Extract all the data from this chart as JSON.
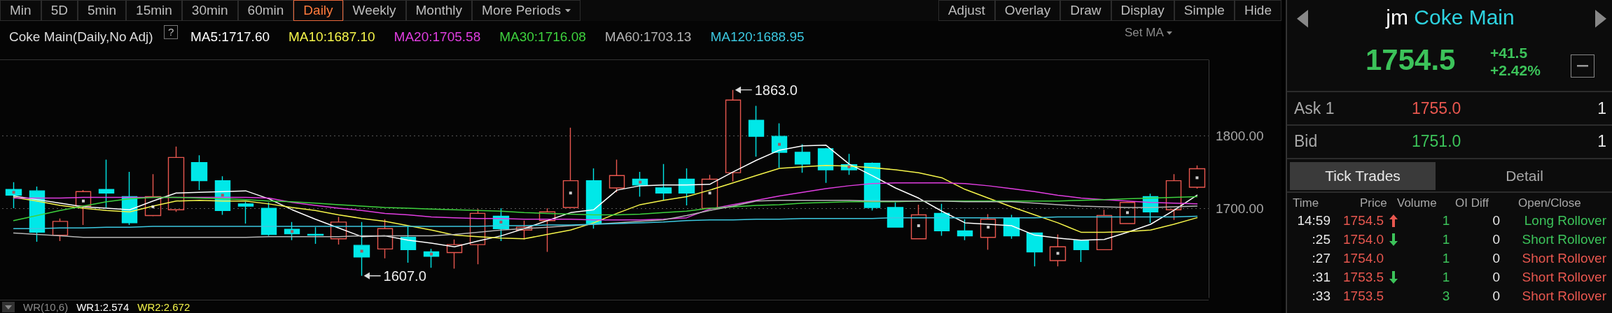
{
  "chart_data": [
    {
      "type": "candlestick",
      "title": "Coke Main(Daily,No Adj)",
      "categories": [
        null,
        null,
        null,
        null,
        null,
        null,
        null,
        null,
        null,
        null,
        null,
        null,
        null,
        null,
        null,
        null,
        null,
        null,
        null,
        null,
        null,
        null,
        null,
        null,
        null,
        null,
        null,
        null,
        null,
        null,
        null,
        null,
        null,
        null,
        null,
        null,
        null,
        null,
        null,
        null,
        null,
        null,
        null,
        null,
        null,
        null,
        null,
        null,
        null,
        null,
        null,
        null
      ],
      "ohlc": [
        [
          1726,
          1736,
          1700,
          1718
        ],
        [
          1724,
          1730,
          1654,
          1667
        ],
        [
          1663,
          1686,
          1655,
          1682
        ],
        [
          1703,
          1725,
          1677,
          1723
        ],
        [
          1726,
          1767,
          1701,
          1721
        ],
        [
          1716,
          1750,
          1677,
          1680
        ],
        [
          1690,
          1747,
          1689,
          1716
        ],
        [
          1698,
          1785,
          1695,
          1770
        ],
        [
          1763,
          1773,
          1725,
          1738
        ],
        [
          1738,
          1744,
          1691,
          1697
        ],
        [
          1706,
          1709,
          1679,
          1703
        ],
        [
          1700,
          1708,
          1662,
          1664
        ],
        [
          1671,
          1681,
          1656,
          1665
        ],
        [
          1664,
          1674,
          1651,
          1663
        ],
        [
          1658,
          1688,
          1650,
          1681
        ],
        [
          1649,
          1681,
          1607,
          1633
        ],
        [
          1644,
          1685,
          1631,
          1672
        ],
        [
          1660,
          1675,
          1625,
          1643
        ],
        [
          1640,
          1644,
          1618,
          1634
        ],
        [
          1639,
          1657,
          1617,
          1650
        ],
        [
          1650,
          1699,
          1623,
          1693
        ],
        [
          1689,
          1700,
          1655,
          1672
        ],
        [
          1670,
          1683,
          1657,
          1674
        ],
        [
          1683,
          1700,
          1640,
          1695
        ],
        [
          1701,
          1811,
          1701,
          1738
        ],
        [
          1738,
          1755,
          1672,
          1679
        ],
        [
          1728,
          1767,
          1722,
          1745
        ],
        [
          1740,
          1750,
          1716,
          1732
        ],
        [
          1728,
          1761,
          1711,
          1721
        ],
        [
          1740,
          1755,
          1704,
          1721
        ],
        [
          1700,
          1746,
          1700,
          1740
        ],
        [
          1749,
          1863,
          1737,
          1849
        ],
        [
          1821,
          1841,
          1771,
          1799
        ],
        [
          1799,
          1817,
          1756,
          1777
        ],
        [
          1777,
          1788,
          1749,
          1761
        ],
        [
          1782,
          1783,
          1735,
          1753
        ],
        [
          1760,
          1775,
          1746,
          1753
        ],
        [
          1762,
          1763,
          1697,
          1701
        ],
        [
          1701,
          1708,
          1674,
          1674
        ],
        [
          1658,
          1705,
          1658,
          1691
        ],
        [
          1693,
          1706,
          1662,
          1669
        ],
        [
          1669,
          1685,
          1656,
          1662
        ],
        [
          1660,
          1692,
          1643,
          1685
        ],
        [
          1686,
          1691,
          1658,
          1662
        ],
        [
          1666,
          1666,
          1620,
          1640
        ],
        [
          1628,
          1664,
          1620,
          1647
        ],
        [
          1656,
          1656,
          1626,
          1643
        ],
        [
          1643,
          1698,
          1643,
          1690
        ],
        [
          1679,
          1709,
          1679,
          1708
        ],
        [
          1716,
          1720,
          1680,
          1695
        ],
        [
          1698,
          1747,
          1684,
          1738
        ],
        [
          1729,
          1759,
          1727,
          1754.5
        ]
      ],
      "colors": [
        "#00e8e8",
        "#00e8e8",
        "#e8574f",
        "#e8574f",
        "#00e8e8",
        "#00e8e8",
        "#e8574f",
        "#e8574f",
        "#00e8e8",
        "#00e8e8",
        "#00e8e8",
        "#00e8e8",
        "#00e8e8",
        "#00e8e8",
        "#e8574f",
        "#00e8e8",
        "#e8574f",
        "#00e8e8",
        "#00e8e8",
        "#e8574f",
        "#e8574f",
        "#00e8e8",
        "#e8574f",
        "#e8574f",
        "#e8574f",
        "#00e8e8",
        "#e8574f",
        "#00e8e8",
        "#00e8e8",
        "#00e8e8",
        "#e8574f",
        "#e8574f",
        "#00e8e8",
        "#00e8e8",
        "#00e8e8",
        "#00e8e8",
        "#00e8e8",
        "#00e8e8",
        "#00e8e8",
        "#e8574f",
        "#00e8e8",
        "#00e8e8",
        "#e8574f",
        "#00e8e8",
        "#00e8e8",
        "#e8574f",
        "#00e8e8",
        "#e8574f",
        "#e8574f",
        "#00e8e8",
        "#e8574f",
        "#e8574f"
      ],
      "series": [
        {
          "type": "line",
          "name": "MA5:1717.60",
          "color": "#ffffff",
          "marker": "none",
          "values": [
            1717,
            1712,
            1707,
            1702,
            1700,
            1698,
            1710,
            1721,
            1722,
            1723,
            1724,
            1713,
            1698,
            1685,
            1673,
            1661,
            1662,
            1656,
            1652,
            1647,
            1655,
            1662,
            1672,
            1683,
            1694,
            1698,
            1725,
            1731,
            1732,
            1732,
            1733,
            1750,
            1766,
            1780,
            1786,
            1787,
            1761,
            1745,
            1728,
            1714,
            1696,
            1680,
            1678,
            1676,
            1663,
            1659,
            1656,
            1657,
            1667,
            1678,
            1697,
            1718
          ]
        },
        {
          "type": "line",
          "name": "MA10:1687.10",
          "color": "#f5f54a",
          "marker": "none",
          "values": [
            1715,
            1710,
            1704,
            1700,
            1697,
            1695,
            1703,
            1710,
            1711,
            1710,
            1710,
            1706,
            1701,
            1697,
            1691,
            1686,
            1682,
            1676,
            1670,
            1663,
            1661,
            1659,
            1658,
            1664,
            1670,
            1680,
            1693,
            1705,
            1711,
            1716,
            1725,
            1735,
            1745,
            1755,
            1757,
            1759,
            1758,
            1756,
            1753,
            1749,
            1742,
            1726,
            1714,
            1702,
            1691,
            1680,
            1667,
            1667,
            1668,
            1670,
            1678,
            1687
          ]
        },
        {
          "type": "line",
          "name": "MA20:1705.58",
          "color": "#e23ee2",
          "marker": "none",
          "values": [
            1714,
            1714,
            1714,
            1715,
            1715,
            1715,
            1715,
            1715,
            1715,
            1715,
            1715,
            1714,
            1708,
            1704,
            1700,
            1697,
            1693,
            1691,
            1688,
            1687,
            1686,
            1686,
            1685,
            1685,
            1685,
            1684,
            1684,
            1684,
            1685,
            1687,
            1699,
            1705,
            1711,
            1717,
            1722,
            1727,
            1731,
            1734,
            1735,
            1735,
            1735,
            1734,
            1731,
            1727,
            1723,
            1718,
            1714,
            1712,
            1710,
            1708,
            1707,
            1706
          ]
        },
        {
          "type": "line",
          "name": "MA30:1716.08",
          "color": "#3ed23e",
          "marker": "none",
          "values": [
            1683,
            1690,
            1697,
            1703,
            1709,
            1713,
            1715,
            1715,
            1714,
            1713,
            1712,
            1710,
            1709,
            1707,
            1705,
            1703,
            1701,
            1700,
            1699,
            1698,
            1697,
            1696,
            1694,
            1693,
            1692,
            1691,
            1691,
            1692,
            1694,
            1696,
            1700,
            1702,
            1704,
            1705,
            1707,
            1708,
            1709,
            1709,
            1709,
            1710,
            1710,
            1710,
            1710,
            1710,
            1710,
            1710,
            1711,
            1712,
            1713,
            1714,
            1715,
            1716
          ]
        },
        {
          "type": "line",
          "name": "MA60:1703.13",
          "color": "#b4b4b4",
          "marker": "none",
          "values": [
            1666,
            1664,
            1662,
            1660,
            1660,
            1660,
            1660,
            1660,
            1660,
            1660,
            1660,
            1661,
            1661,
            1661,
            1661,
            1662,
            1662,
            1662,
            1662,
            1664,
            1667,
            1670,
            1672,
            1674,
            1676,
            1678,
            1680,
            1682,
            1684,
            1690,
            1697,
            1703,
            1710,
            1711,
            1711,
            1711,
            1711,
            1710,
            1710,
            1710,
            1710,
            1709,
            1709,
            1709,
            1707,
            1705,
            1703,
            1702,
            1701,
            1701,
            1702,
            1703
          ]
        },
        {
          "type": "line",
          "name": "MA120:1688.95",
          "color": "#3cc8e0",
          "marker": "none",
          "values": [
            1672,
            1672,
            1673,
            1673,
            1674,
            1674,
            1675,
            1675,
            1675,
            1675,
            1675,
            1675,
            1675,
            1675,
            1675,
            1675,
            1675,
            1675,
            1675,
            1675,
            1675,
            1676,
            1676,
            1677,
            1677,
            1678,
            1679,
            1680,
            1681,
            1683,
            1684,
            1684,
            1685,
            1685,
            1686,
            1686,
            1686,
            1686,
            1687,
            1687,
            1687,
            1687,
            1687,
            1687,
            1687,
            1688,
            1688,
            1688,
            1688,
            1688,
            1688,
            1689
          ]
        },
        {
          "type": "scatter",
          "color": "#ffffff",
          "marker": "square",
          "values": [
            null,
            null,
            null,
            1710,
            null,
            null,
            1702,
            null,
            null,
            null,
            null,
            null,
            null,
            null,
            null,
            null,
            null,
            null,
            null,
            null,
            null,
            null,
            null,
            null,
            1721,
            null,
            null,
            null,
            null,
            null,
            1721,
            null,
            null,
            null,
            null,
            null,
            null,
            null,
            null,
            1676,
            null,
            null,
            1674,
            null,
            null,
            1638,
            null,
            null,
            1694,
            null,
            null,
            1742
          ]
        },
        {
          "type": "scatter",
          "color": "#d0303a",
          "marker": "square",
          "values": [
            1722,
            null,
            null,
            null,
            null,
            null,
            null,
            null,
            null,
            1718,
            null,
            null,
            1668,
            null,
            null,
            1641,
            null,
            null,
            1637,
            null,
            null,
            1681,
            null,
            null,
            null,
            null,
            null,
            1736,
            null,
            null,
            null,
            null,
            null,
            1788,
            null,
            null,
            1757,
            null,
            null,
            null,
            null,
            null,
            null,
            null,
            null,
            null,
            null,
            null,
            null,
            null,
            null,
            null
          ]
        }
      ],
      "ylim": [
        1577,
        1904
      ],
      "yticks": [
        {
          "value": 1700,
          "label": "1700.00"
        },
        {
          "value": 1800,
          "label": "1800.00"
        }
      ],
      "grid": "y",
      "legend": "top left",
      "tick_labels": "y",
      "annotations": [
        "?",
        "Set MA",
        "WR(10,6)",
        "WR1:2.574",
        "WR2:2.672",
        "1863.0",
        "1607.0"
      ]
    },
    {
      "type": "other",
      "annotations": [
        "Min",
        "5D",
        "5min",
        "15min",
        "30min",
        "60min",
        "Daily",
        "Weekly",
        "Monthly",
        "More Periods",
        "Adjust",
        "Overlay",
        "Draw",
        "Display",
        "Simple",
        "Hide"
      ]
    },
    {
      "type": "other",
      "title": "jm",
      "subtitle": "Coke Main",
      "annotations": [
        "1754.5",
        "+41.5",
        "+2.42%",
        "Ask 1",
        "1755.0",
        "1",
        "Bid",
        "1751.0",
        "1",
        "Tick Trades",
        "Detail",
        "Time",
        "Price",
        "Volume",
        "OI Diff",
        "Open/Close",
        "14:59",
        "1754.5",
        "1",
        "0",
        "Long Rollover",
        ":25",
        "1754.0",
        "1",
        "0",
        "Short Rollover",
        ":27",
        "1754.0",
        "1",
        "0",
        "Short Rollover",
        ":31",
        "1753.5",
        "1",
        "0",
        "Short Rollover",
        ":33",
        "1753.5",
        "3",
        "0",
        "Short Rollover"
      ]
    }
  ]
}
